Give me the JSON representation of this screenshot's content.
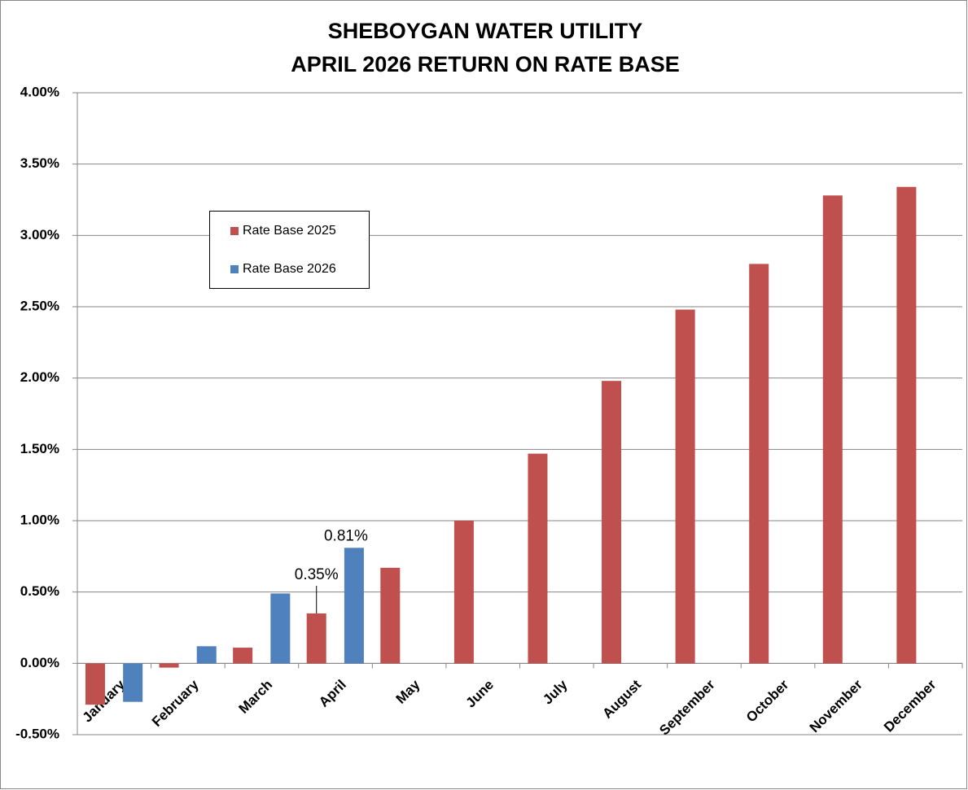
{
  "chart_data": {
    "type": "bar",
    "title": [
      "SHEBOYGAN WATER UTILITY",
      "APRIL 2026 RETURN ON RATE BASE"
    ],
    "categories": [
      "January",
      "February",
      "March",
      "April",
      "May",
      "June",
      "July",
      "August",
      "September",
      "October",
      "November",
      "December"
    ],
    "series": [
      {
        "name": "Rate Base 2025",
        "color": "#c0504d",
        "values": [
          -0.29,
          -0.03,
          0.11,
          0.35,
          0.67,
          1.0,
          1.47,
          1.98,
          2.48,
          2.8,
          3.28,
          3.34
        ],
        "value_labels": [
          null,
          null,
          null,
          "0.35%",
          null,
          null,
          null,
          null,
          null,
          null,
          null,
          null
        ]
      },
      {
        "name": "Rate Base 2026",
        "color": "#4f81bd",
        "values": [
          -0.27,
          0.12,
          0.49,
          0.81,
          null,
          null,
          null,
          null,
          null,
          null,
          null,
          null
        ],
        "value_labels": [
          null,
          null,
          null,
          "0.81%",
          null,
          null,
          null,
          null,
          null,
          null,
          null,
          null
        ]
      }
    ],
    "ylim": [
      -0.5,
      4
    ],
    "yticks": [
      {
        "value": -0.5,
        "label": "-0.50%"
      },
      {
        "value": 0,
        "label": "0.00%"
      },
      {
        "value": 0.5,
        "label": "0.50%"
      },
      {
        "value": 1,
        "label": "1.00%"
      },
      {
        "value": 1.5,
        "label": "1.50%"
      },
      {
        "value": 2,
        "label": "2.00%"
      },
      {
        "value": 2.5,
        "label": "2.50%"
      },
      {
        "value": 3,
        "label": "3.00%"
      },
      {
        "value": 3.5,
        "label": "3.50%"
      },
      {
        "value": 4,
        "label": "4.00%"
      }
    ],
    "grid": true
  }
}
